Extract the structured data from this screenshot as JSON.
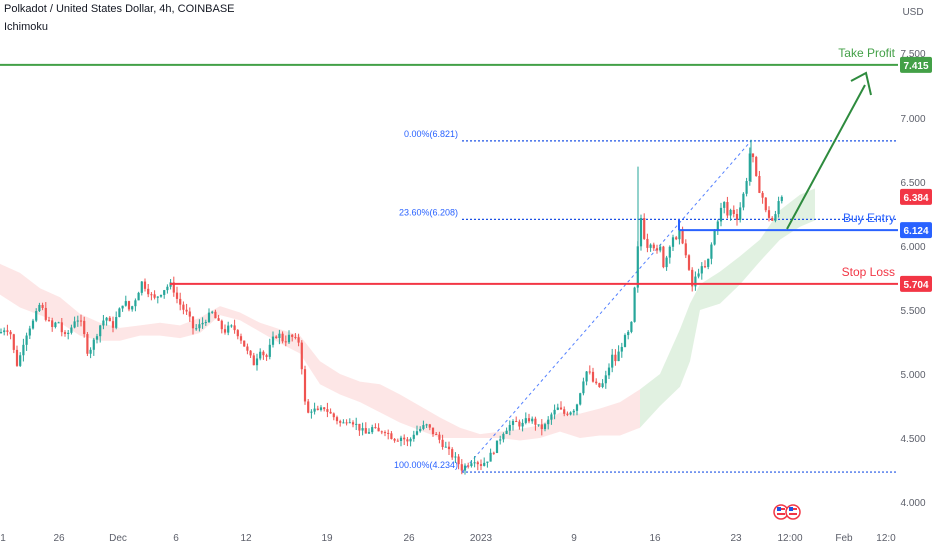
{
  "header": {
    "symbol": "Polkadot / United States Dollar, 4h, COINBASE",
    "indicator": "Ichimoku"
  },
  "chart_data": {
    "type": "candlestick",
    "currency": "USD",
    "y_ticks": [
      4.0,
      4.5,
      5.0,
      5.5,
      6.0,
      6.5,
      7.0,
      7.5
    ],
    "x_ticks": [
      "1",
      "26",
      "Dec",
      "6",
      "12",
      "19",
      "26",
      "2023",
      "9",
      "16",
      "23",
      "12:00",
      "Feb",
      "12:0"
    ],
    "levels": [
      {
        "name": "Take Profit",
        "value": 7.415,
        "label": "7.415",
        "color": "#43a047"
      },
      {
        "name": "Buy Entry",
        "value": 6.124,
        "label": "6.124",
        "color": "#2962ff"
      },
      {
        "name": "Stop Loss",
        "value": 5.704,
        "label": "5.704",
        "color": "#f23645"
      }
    ],
    "last_price": {
      "value": 6.384,
      "label": "6.384",
      "color": "#f23645"
    },
    "fibonacci": [
      {
        "label": "0.00%(6.821)",
        "value": 6.821
      },
      {
        "label": "23.60%(6.208)",
        "value": 6.208
      },
      {
        "label": "100.00%(4.234)",
        "value": 4.234
      }
    ],
    "price_path": [
      [
        0,
        5.32
      ],
      [
        5,
        5.36
      ],
      [
        10,
        5.34
      ],
      [
        15,
        5.13
      ],
      [
        18,
        5.05
      ],
      [
        22,
        5.22
      ],
      [
        28,
        5.35
      ],
      [
        34,
        5.42
      ],
      [
        40,
        5.55
      ],
      [
        46,
        5.44
      ],
      [
        52,
        5.36
      ],
      [
        58,
        5.42
      ],
      [
        64,
        5.28
      ],
      [
        70,
        5.34
      ],
      [
        76,
        5.45
      ],
      [
        82,
        5.38
      ],
      [
        88,
        5.16
      ],
      [
        94,
        5.26
      ],
      [
        100,
        5.38
      ],
      [
        106,
        5.45
      ],
      [
        112,
        5.36
      ],
      [
        118,
        5.47
      ],
      [
        124,
        5.58
      ],
      [
        130,
        5.49
      ],
      [
        136,
        5.6
      ],
      [
        142,
        5.72
      ],
      [
        148,
        5.65
      ],
      [
        154,
        5.58
      ],
      [
        160,
        5.63
      ],
      [
        166,
        5.68
      ],
      [
        172,
        5.7
      ],
      [
        176,
        5.6
      ],
      [
        182,
        5.52
      ],
      [
        188,
        5.46
      ],
      [
        194,
        5.34
      ],
      [
        200,
        5.38
      ],
      [
        206,
        5.43
      ],
      [
        212,
        5.48
      ],
      [
        218,
        5.4
      ],
      [
        224,
        5.33
      ],
      [
        230,
        5.37
      ],
      [
        236,
        5.34
      ],
      [
        242,
        5.26
      ],
      [
        248,
        5.16
      ],
      [
        254,
        5.08
      ],
      [
        260,
        5.2
      ],
      [
        266,
        5.12
      ],
      [
        272,
        5.26
      ],
      [
        278,
        5.32
      ],
      [
        284,
        5.25
      ],
      [
        290,
        5.3
      ],
      [
        296,
        5.26
      ],
      [
        300,
        5.25
      ],
      [
        304,
        4.82
      ],
      [
        307,
        4.68
      ],
      [
        312,
        4.73
      ],
      [
        318,
        4.7
      ],
      [
        324,
        4.74
      ],
      [
        330,
        4.69
      ],
      [
        336,
        4.65
      ],
      [
        342,
        4.6
      ],
      [
        348,
        4.66
      ],
      [
        354,
        4.62
      ],
      [
        360,
        4.57
      ],
      [
        366,
        4.53
      ],
      [
        372,
        4.58
      ],
      [
        378,
        4.54
      ],
      [
        384,
        4.57
      ],
      [
        390,
        4.52
      ],
      [
        396,
        4.49
      ],
      [
        402,
        4.51
      ],
      [
        408,
        4.46
      ],
      [
        414,
        4.54
      ],
      [
        420,
        4.57
      ],
      [
        426,
        4.6
      ],
      [
        432,
        4.55
      ],
      [
        438,
        4.5
      ],
      [
        444,
        4.44
      ],
      [
        450,
        4.38
      ],
      [
        456,
        4.33
      ],
      [
        462,
        4.26
      ],
      [
        468,
        4.3
      ],
      [
        474,
        4.34
      ],
      [
        480,
        4.29
      ],
      [
        486,
        4.32
      ],
      [
        492,
        4.38
      ],
      [
        498,
        4.47
      ],
      [
        504,
        4.56
      ],
      [
        510,
        4.6
      ],
      [
        516,
        4.62
      ],
      [
        522,
        4.6
      ],
      [
        528,
        4.65
      ],
      [
        534,
        4.63
      ],
      [
        540,
        4.57
      ],
      [
        546,
        4.6
      ],
      [
        552,
        4.69
      ],
      [
        558,
        4.73
      ],
      [
        564,
        4.69
      ],
      [
        570,
        4.71
      ],
      [
        576,
        4.74
      ],
      [
        580,
        4.86
      ],
      [
        584,
        4.98
      ],
      [
        588,
        5.04
      ],
      [
        592,
        4.95
      ],
      [
        598,
        4.89
      ],
      [
        604,
        4.93
      ],
      [
        608,
        5.03
      ],
      [
        612,
        5.14
      ],
      [
        616,
        5.1
      ],
      [
        620,
        5.2
      ],
      [
        624,
        5.27
      ],
      [
        628,
        5.31
      ],
      [
        632,
        5.4
      ],
      [
        636,
        5.8
      ],
      [
        638,
        6.0
      ],
      [
        641,
        6.22
      ],
      [
        644,
        6.08
      ],
      [
        648,
        5.99
      ],
      [
        652,
        6.06
      ],
      [
        656,
        5.93
      ],
      [
        660,
        5.99
      ],
      [
        664,
        5.83
      ],
      [
        668,
        5.96
      ],
      [
        672,
        6.09
      ],
      [
        676,
        6.03
      ],
      [
        680,
        6.12
      ],
      [
        684,
        6.0
      ],
      [
        688,
        5.83
      ],
      [
        692,
        5.68
      ],
      [
        696,
        5.76
      ],
      [
        700,
        5.83
      ],
      [
        704,
        5.81
      ],
      [
        708,
        5.88
      ],
      [
        712,
        6.03
      ],
      [
        716,
        6.16
      ],
      [
        720,
        6.27
      ],
      [
        724,
        6.34
      ],
      [
        728,
        6.22
      ],
      [
        732,
        6.31
      ],
      [
        736,
        6.2
      ],
      [
        740,
        6.3
      ],
      [
        744,
        6.42
      ],
      [
        748,
        6.58
      ],
      [
        751,
        6.82
      ],
      [
        754,
        6.6
      ],
      [
        758,
        6.46
      ],
      [
        762,
        6.4
      ],
      [
        766,
        6.26
      ],
      [
        770,
        6.22
      ],
      [
        774,
        6.18
      ],
      [
        778,
        6.34
      ],
      [
        782,
        6.4
      ]
    ],
    "cloud": [
      [
        0,
        5.86,
        5.62
      ],
      [
        20,
        5.79,
        5.52
      ],
      [
        40,
        5.67,
        5.46
      ],
      [
        60,
        5.6,
        5.4
      ],
      [
        80,
        5.47,
        5.3
      ],
      [
        100,
        5.4,
        5.26
      ],
      [
        120,
        5.36,
        5.26
      ],
      [
        140,
        5.38,
        5.3
      ],
      [
        160,
        5.4,
        5.3
      ],
      [
        180,
        5.38,
        5.28
      ],
      [
        200,
        5.44,
        5.32
      ],
      [
        220,
        5.53,
        5.46
      ],
      [
        240,
        5.48,
        5.42
      ],
      [
        260,
        5.4,
        5.33
      ],
      [
        280,
        5.35,
        5.24
      ],
      [
        300,
        5.3,
        5.16
      ],
      [
        320,
        5.1,
        4.92
      ],
      [
        340,
        5.0,
        4.84
      ],
      [
        360,
        4.94,
        4.78
      ],
      [
        380,
        4.92,
        4.7
      ],
      [
        400,
        4.84,
        4.62
      ],
      [
        420,
        4.75,
        4.56
      ],
      [
        440,
        4.66,
        4.5
      ],
      [
        460,
        4.58,
        4.5
      ],
      [
        480,
        4.53,
        4.5
      ],
      [
        500,
        4.55,
        4.5
      ],
      [
        520,
        4.57,
        4.48
      ],
      [
        540,
        4.6,
        4.5
      ],
      [
        560,
        4.7,
        4.55
      ],
      [
        580,
        4.69,
        4.5
      ],
      [
        600,
        4.73,
        4.52
      ],
      [
        620,
        4.78,
        4.52
      ],
      [
        640,
        4.88,
        4.58
      ],
      [
        660,
        5.0,
        4.75
      ],
      [
        680,
        5.35,
        4.9
      ],
      [
        690,
        5.55,
        5.1
      ],
      [
        700,
        5.7,
        5.5
      ],
      [
        720,
        5.8,
        5.55
      ],
      [
        740,
        5.92,
        5.7
      ],
      [
        760,
        6.05,
        5.88
      ],
      [
        780,
        6.28,
        6.05
      ],
      [
        800,
        6.4,
        6.15
      ],
      [
        815,
        6.45,
        6.2
      ]
    ]
  }
}
